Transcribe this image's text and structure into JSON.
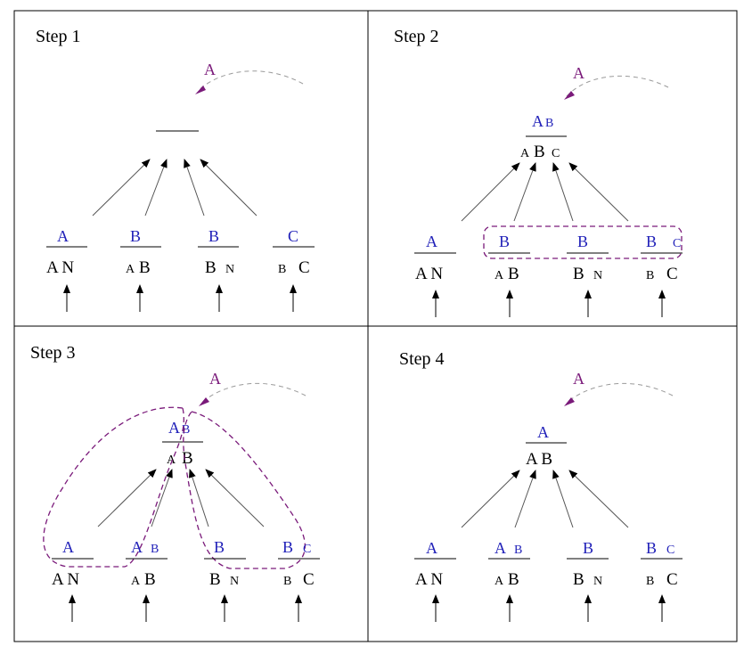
{
  "colors": {
    "blue": "#1f1fb8",
    "purple": "#7a1a7a",
    "black": "#000000",
    "grey_dashed": "#9a9a9a"
  },
  "panels": [
    {
      "title": "Step 1",
      "incoming": "A",
      "top": {
        "upper": "",
        "upper_small": "",
        "lower": []
      },
      "leaves": [
        {
          "upper": "A",
          "upper_small": "",
          "lower_small_pre": "",
          "lower": "A N"
        },
        {
          "upper": "B",
          "upper_small": "",
          "lower_small_pre": "A",
          "lower": "B"
        },
        {
          "upper": "B",
          "upper_small": "",
          "lower_small_pre": "",
          "lower": "B",
          "lower_small_post": "N"
        },
        {
          "upper": "C",
          "upper_small": "",
          "lower_small_pre": "B",
          "lower": "C"
        }
      ]
    },
    {
      "title": "Step 2",
      "incoming": "A",
      "top": {
        "upper": "A",
        "upper_small": "B",
        "lower_small_pre": "A",
        "lower": "B",
        "lower_small_post": "C"
      },
      "leaves": [
        {
          "upper": "A",
          "upper_small": "",
          "lower_small_pre": "",
          "lower": "A N"
        },
        {
          "upper": "B",
          "upper_small": "",
          "lower_small_pre": "A",
          "lower": "B"
        },
        {
          "upper": "B",
          "upper_small": "",
          "lower_small_pre": "",
          "lower": "B",
          "lower_small_post": "N"
        },
        {
          "upper": "B",
          "upper_small": "C",
          "lower_small_pre": "B",
          "lower": "C"
        }
      ]
    },
    {
      "title": "Step 3",
      "incoming": "A",
      "top": {
        "upper": "A",
        "upper_small": "B",
        "lower_small_pre": "A",
        "lower": "B",
        "lower_small_post": ""
      },
      "leaves": [
        {
          "upper": "A",
          "upper_small": "",
          "lower_small_pre": "",
          "lower": "A N"
        },
        {
          "upper": "A",
          "upper_small": "B",
          "lower_small_pre": "A",
          "lower": "B"
        },
        {
          "upper": "B",
          "upper_small": "",
          "lower_small_pre": "",
          "lower": "B",
          "lower_small_post": "N"
        },
        {
          "upper": "B",
          "upper_small": "C",
          "lower_small_pre": "B",
          "lower": "C"
        }
      ]
    },
    {
      "title": "Step 4",
      "incoming": "A",
      "top": {
        "upper": "A",
        "upper_small": "",
        "lower_small_pre": "",
        "lower": "A B",
        "lower_small_post": ""
      },
      "leaves": [
        {
          "upper": "A",
          "upper_small": "",
          "lower_small_pre": "",
          "lower": "A N"
        },
        {
          "upper": "A",
          "upper_small": "B",
          "lower_small_pre": "A",
          "lower": "B"
        },
        {
          "upper": "B",
          "upper_small": "",
          "lower_small_pre": "",
          "lower": "B",
          "lower_small_post": "N"
        },
        {
          "upper": "B",
          "upper_small": "C",
          "lower_small_pre": "B",
          "lower": "C"
        }
      ]
    }
  ]
}
